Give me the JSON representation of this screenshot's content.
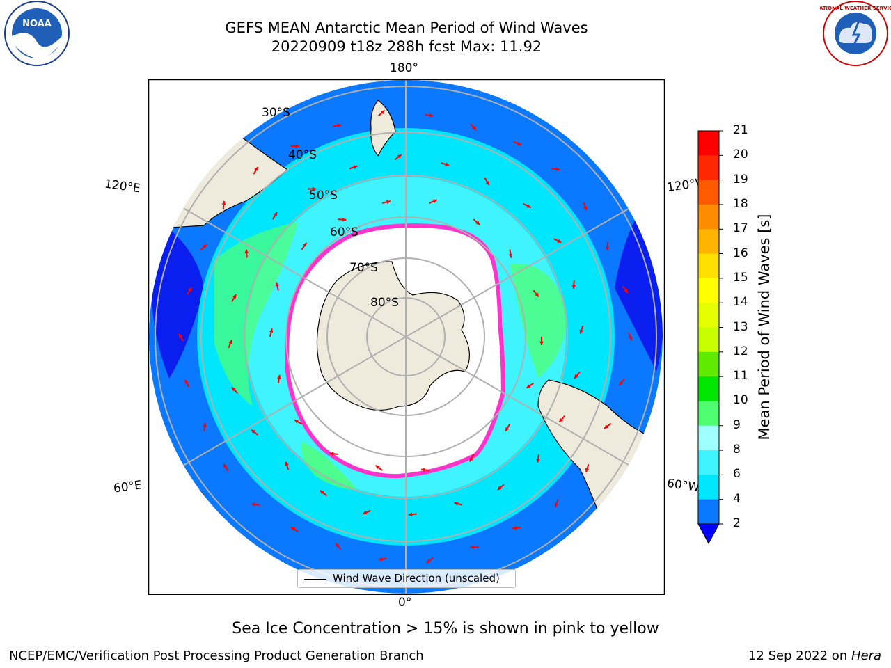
{
  "title": {
    "line1": "GEFS MEAN Antarctic Mean Period of Wind Waves",
    "line2": "20220909 t18z 288h fcst   Max: 11.92"
  },
  "longitude_labels": {
    "top": "180°",
    "bottom": "0°",
    "upper_left": "120°E",
    "upper_right": "120°W",
    "lower_left": "60°E",
    "lower_right": "60°W"
  },
  "latitude_labels": [
    "30°S",
    "40°S",
    "50°S",
    "60°S",
    "70°S",
    "80°S"
  ],
  "legend": {
    "label": "Wind Wave Direction (unscaled)"
  },
  "colorbar": {
    "label": "Mean Period of Wind Waves [s]",
    "ticks": [
      "2",
      "4",
      "6",
      "8",
      "9",
      "10",
      "11",
      "12",
      "13",
      "14",
      "15",
      "16",
      "17",
      "18",
      "19",
      "20",
      "21"
    ],
    "colors": [
      "#0a1ef0",
      "#0a78ff",
      "#00e6ff",
      "#40f4ff",
      "#a0ffff",
      "#50ff70",
      "#00e600",
      "#60ea00",
      "#c8ff00",
      "#e6ff00",
      "#ffff00",
      "#ffe000",
      "#ffb400",
      "#ff8c00",
      "#ff5a00",
      "#ff2800",
      "#ff0000"
    ],
    "under_color": "#0000ff"
  },
  "footer": {
    "note": "Sea Ice Concentration > 15% is shown in pink to yellow",
    "left": "NCEP/EMC/Verification Post Processing Product Generation Branch",
    "right_date": "12 Sep 2022 on ",
    "right_host": "Hera"
  },
  "logos": {
    "left_text": "NOAA",
    "right_text": "NATIONAL WEATHER SERVICE"
  },
  "map_colors": {
    "land": "#efebdc",
    "ice": "#ffffff",
    "ice_edge": "#ff33cc",
    "ocean_outer": "#0a78ff",
    "ocean_mid": "#00e6ff",
    "ocean_inner": "#40f4ff",
    "arrow": "#ff0000",
    "grid": "#b0b0b0"
  }
}
